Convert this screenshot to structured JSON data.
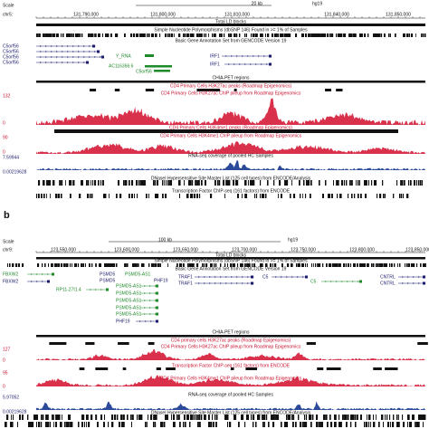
{
  "panels": [
    {
      "scale_label": "Scale",
      "chrom": "chr5:",
      "scale_bar": "20 kb",
      "assembly": "hg19",
      "coordinates": [
        "131,790,000",
        "131,800,000",
        "131,810,000",
        "131,840,000",
        "131,850,000"
      ],
      "tracks": [
        "Total LD blocks",
        "Simple Nucleotide Polymorphisms (dbSNP 146) Found in >= 1% of Samples",
        "Basic Gene Annotation Set from GENCODE Version 19",
        "CHIA-PET regions",
        "CD4 Primary Cells H3K27ac peaks (Roadmap Epigenomics)",
        "CD4 Primary Cells H3K27ac ChIP pileup from Roadmap Epigenomics",
        "CD4 Primary Cells H3K4me1 peaks (Roadmap Epigenomics)",
        "CD4 Primary Cells H3K4me1 ChIP pileup from Roadmap Epigenomics",
        "RNA-seq coverage of pooled HC Samples",
        "DNaseI Hypersensitive Site Master List (125 cell types) from ENCODE/Analysis",
        "Transcription Factor ChIP-seq (161 factors) from ENCODE"
      ],
      "genes": [
        "C5orf56",
        "C5orf56",
        "C5orf56",
        "C5orf56",
        "Y_RNA",
        "IRF1",
        "IRF1",
        "AC116366.6",
        "C5orf56"
      ],
      "axis_labels": [
        "132",
        "0",
        "90",
        "0",
        "7.59944",
        "0.00219628"
      ]
    },
    {
      "panel_label": "b",
      "scale_label": "Scale",
      "chrom": "chr9:",
      "scale_bar": "100 kb",
      "assembly": "hg19",
      "coordinates": [
        "123,550,000",
        "123,600,000",
        "123,650,000",
        "123,700,000",
        "123,750,000",
        "123,800,000",
        "123,850,000"
      ],
      "tracks": [
        "Total LD blocks",
        "Simple Nucleotide Polymorphisms (dbSNP 146) Found in >= 1% of Samples",
        "Basic Gene Annotation Set from GENCODE Version 19",
        "CHIA-PET regions",
        "CD4 primary cells H3K27ac peaks (Roadmap Epigenomics)",
        "CD4 Primary Cells H3K27ac ChIP pileup from Roadmap Epigenomics",
        "Transcription Factor ChIP-seq (161 factors) from ENCODE",
        "CD4 Primary Cells H3K4me1 ChIP pileup from Roadmap Epigenomics",
        "RNA-seq coverage of pooled HC Samples",
        "DNaseI Hypersensitive Site Master List (125 cell types) from ENCODE/Analysis"
      ],
      "genes": [
        "FBXW2",
        "FBXW2",
        "PSMD5",
        "PSMD5-AS1",
        "PSMD5",
        "PHF19",
        "TRAF1",
        "TRAF1",
        "C5",
        "C5",
        "CNTRL",
        "CNTRL",
        "RP11-27I1.4",
        "PSMD5-AS1",
        "PSMD5-AS1",
        "PSMD5-AS1",
        "PSMD5-AS1",
        "PSMD5-AS1",
        "PHF19"
      ],
      "axis_labels": [
        "127",
        "0",
        "95",
        "0",
        "5.97052",
        "0.00219628"
      ]
    }
  ]
}
